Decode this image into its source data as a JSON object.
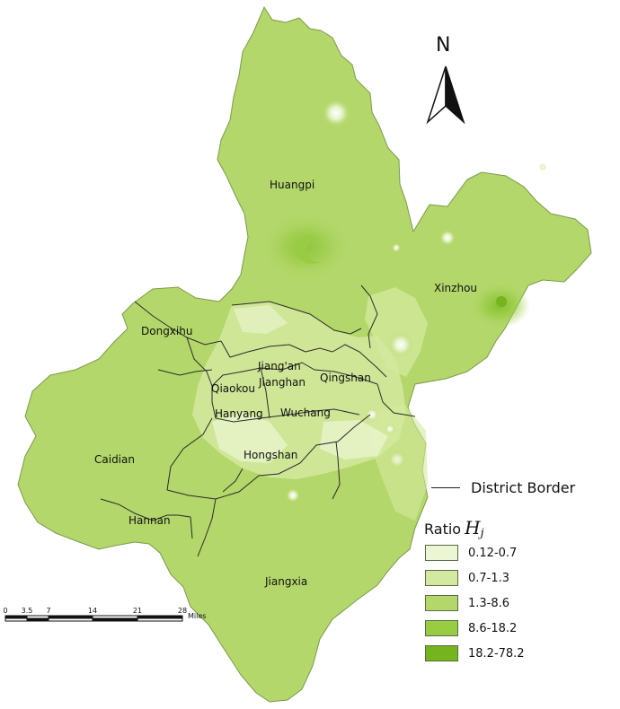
{
  "north_label": "N",
  "districts": [
    {
      "name": "Huangpi"
    },
    {
      "name": "Xinzhou"
    },
    {
      "name": "Dongxihu"
    },
    {
      "name": "Jiang'an"
    },
    {
      "name": "Jianghan"
    },
    {
      "name": "Qingshan"
    },
    {
      "name": "Qiaokou"
    },
    {
      "name": "Hanyang"
    },
    {
      "name": "Wuchang"
    },
    {
      "name": "Hongshan"
    },
    {
      "name": "Caidian"
    },
    {
      "name": "Hannan"
    },
    {
      "name": "Jiangxia"
    }
  ],
  "legend": {
    "border_label": "District Border",
    "title": "Ratio",
    "symbol": "H",
    "symbol_sub": "j",
    "classes": [
      {
        "label": "0.12-0.7",
        "color": "#edf6d4"
      },
      {
        "label": "0.7-1.3",
        "color": "#d3e99f"
      },
      {
        "label": "1.3-8.6",
        "color": "#b3d76a"
      },
      {
        "label": "8.6-18.2",
        "color": "#98cc43"
      },
      {
        "label": "18.2-78.2",
        "color": "#74b51e"
      }
    ]
  },
  "scale": {
    "ticks": [
      "0",
      "3.5",
      "7",
      "14",
      "21",
      "28"
    ],
    "unit": "Miles"
  }
}
